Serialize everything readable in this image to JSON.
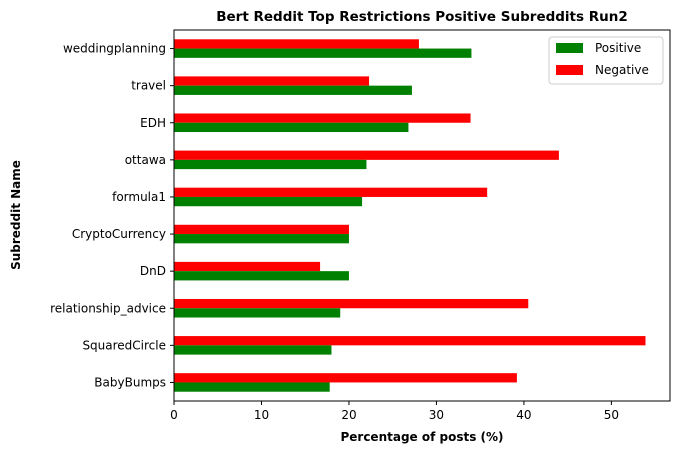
{
  "chart_data": {
    "type": "bar",
    "orientation": "horizontal",
    "title": "Bert Reddit Top Restrictions Positive Subreddits Run2",
    "xlabel": "Percentage of posts (%)",
    "ylabel": "Subreddit Name",
    "xlim": [
      0,
      56.7
    ],
    "xticks": [
      0,
      10,
      20,
      30,
      40,
      50
    ],
    "grid": false,
    "legend_position": "top-right",
    "categories": [
      "weddingplanning",
      "travel",
      "EDH",
      "ottawa",
      "formula1",
      "CryptoCurrency",
      "DnD",
      "relationship_advice",
      "SquaredCircle",
      "BabyBumps"
    ],
    "series": [
      {
        "name": "Positive",
        "color": "#008000",
        "values": [
          34.0,
          27.2,
          26.8,
          22.0,
          21.5,
          20.0,
          20.0,
          19.0,
          18.0,
          17.8
        ]
      },
      {
        "name": "Negative",
        "color": "#ff0000",
        "values": [
          28.0,
          22.3,
          33.9,
          44.0,
          35.8,
          20.0,
          16.7,
          40.5,
          53.9,
          39.2
        ]
      }
    ]
  }
}
